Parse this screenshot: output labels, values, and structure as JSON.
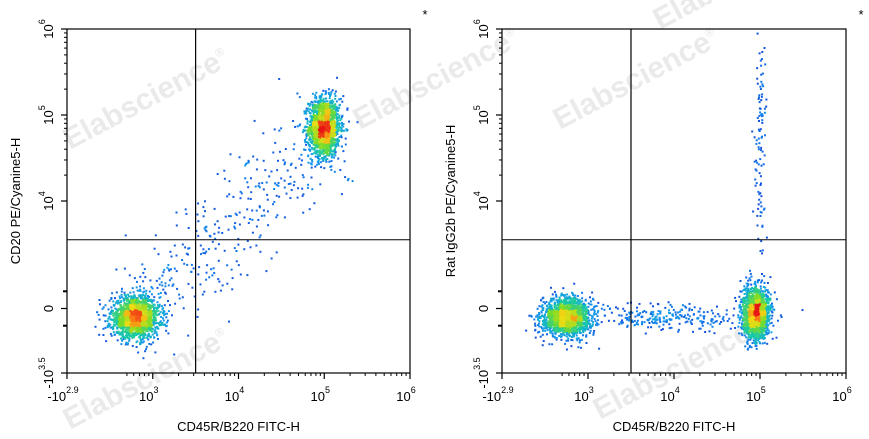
{
  "chart_data": [
    {
      "type": "scatter",
      "subtype": "flow-cytometry-density-dot-plot",
      "xlabel": "CD45R/B220 FITC-H",
      "ylabel": "CD20 PE/Cyanine5-H",
      "corner_mark": "*",
      "x_ticks": [
        {
          "base": "-10",
          "exp": "2.9",
          "pos": 0.0
        },
        {
          "base": "10",
          "exp": "3",
          "pos": 1.0
        },
        {
          "base": "10",
          "exp": "4",
          "pos": 2.0
        },
        {
          "base": "10",
          "exp": "5",
          "pos": 3.0
        },
        {
          "base": "10",
          "exp": "6",
          "pos": 4.0
        }
      ],
      "y_ticks": [
        {
          "base": "-10",
          "exp": "3.5",
          "pos": 0.0
        },
        {
          "base": "0",
          "exp": "",
          "pos": 0.75
        },
        {
          "base": "10",
          "exp": "4",
          "pos": 2.0
        },
        {
          "base": "10",
          "exp": "5",
          "pos": 3.0
        },
        {
          "base": "10",
          "exp": "6",
          "pos": 4.0
        }
      ],
      "gate_lines": {
        "x": 1.5,
        "y": 1.55
      },
      "populations": [
        {
          "label": "CD45R+ CD20+",
          "x": 3.0,
          "y": 2.85,
          "sx": 0.09,
          "sy": 0.17,
          "weight": 0.45
        },
        {
          "label": "CD45R- CD20-",
          "x": 0.8,
          "y": 0.65,
          "sx": 0.14,
          "sy": 0.12,
          "weight": 0.45
        },
        {
          "label": "transitional",
          "x": 1.9,
          "y": 1.6,
          "sx": 0.45,
          "sy": 0.55,
          "weight": 0.1
        }
      ]
    },
    {
      "type": "scatter",
      "subtype": "flow-cytometry-density-dot-plot",
      "xlabel": "CD45R/B220 FITC-H",
      "ylabel": "Rat IgG2b PE/Cyanine5-H",
      "corner_mark": "*",
      "x_ticks": [
        {
          "base": "-10",
          "exp": "2.9",
          "pos": 0.0
        },
        {
          "base": "10",
          "exp": "3",
          "pos": 1.0
        },
        {
          "base": "10",
          "exp": "4",
          "pos": 2.0
        },
        {
          "base": "10",
          "exp": "5",
          "pos": 3.0
        },
        {
          "base": "10",
          "exp": "6",
          "pos": 4.0
        }
      ],
      "y_ticks": [
        {
          "base": "-10",
          "exp": "3.5",
          "pos": 0.0
        },
        {
          "base": "0",
          "exp": "",
          "pos": 0.75
        },
        {
          "base": "10",
          "exp": "4",
          "pos": 2.0
        },
        {
          "base": "10",
          "exp": "5",
          "pos": 3.0
        },
        {
          "base": "10",
          "exp": "6",
          "pos": 4.0
        }
      ],
      "gate_lines": {
        "x": 1.5,
        "y": 1.55
      },
      "populations": [
        {
          "label": "CD45R- isotype",
          "x": 0.75,
          "y": 0.65,
          "sx": 0.14,
          "sy": 0.11,
          "weight": 0.45
        },
        {
          "label": "CD45R+ isotype",
          "x": 2.95,
          "y": 0.7,
          "sx": 0.08,
          "sy": 0.15,
          "weight": 0.45
        },
        {
          "label": "bridge",
          "x": 1.85,
          "y": 0.65,
          "sx": 0.5,
          "sy": 0.08,
          "weight": 0.07
        },
        {
          "label": "streak",
          "x": 3.0,
          "y": 2.6,
          "sx": 0.03,
          "sy": 0.7,
          "weight": 0.03
        }
      ]
    }
  ],
  "watermark": "Elabscience",
  "watermark_mark": "®"
}
